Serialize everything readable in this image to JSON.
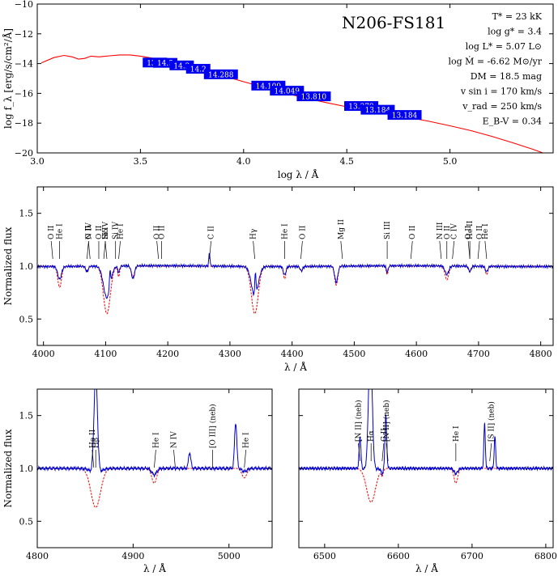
{
  "chart_data": [
    {
      "type": "line",
      "id": "sed",
      "title": "N206-FS181",
      "xlabel": "log λ / Å",
      "ylabel": "log f_λ [erg/s/cm²/Å]",
      "xlim": [
        3.0,
        5.5
      ],
      "ylim": [
        -20,
        -10
      ],
      "xticks": [
        3.0,
        3.5,
        4.0,
        4.5,
        5.0
      ],
      "xtick_labels": [
        "3.0",
        "3.5",
        "4.0",
        "4.5",
        "5.0"
      ],
      "yticks": [
        -20,
        -18,
        -16,
        -14,
        -12,
        -10
      ],
      "ytick_labels": [
        "−20",
        "−18",
        "−16",
        "−14",
        "−12",
        "−10"
      ],
      "grid": false,
      "series": [
        {
          "color": "#ff0000",
          "x": [
            3.02,
            3.08,
            3.13,
            3.17,
            3.2,
            3.23,
            3.26,
            3.3,
            3.35,
            3.4,
            3.45,
            3.5,
            3.55,
            3.6,
            3.65,
            3.7,
            3.8,
            3.9,
            4.0,
            4.1,
            4.2,
            4.3,
            4.4,
            4.5,
            4.6,
            4.7,
            4.8,
            4.9,
            5.0,
            5.1,
            5.2,
            5.3,
            5.4,
            5.45
          ],
          "y": [
            -13.95,
            -13.6,
            -13.45,
            -13.55,
            -13.7,
            -13.65,
            -13.5,
            -13.55,
            -13.48,
            -13.42,
            -13.42,
            -13.5,
            -13.62,
            -13.75,
            -13.9,
            -14.08,
            -14.42,
            -14.82,
            -15.22,
            -15.6,
            -15.98,
            -16.32,
            -16.62,
            -16.9,
            -17.14,
            -17.36,
            -17.62,
            -17.88,
            -18.18,
            -18.5,
            -18.88,
            -19.3,
            -19.75,
            -20.0
          ]
        }
      ],
      "photometry": [
        {
          "x": 3.57,
          "y": -13.93,
          "label": "13.1"
        },
        {
          "x": 3.62,
          "y": -13.95,
          "label": "14.5"
        },
        {
          "x": 3.7,
          "y": -14.12,
          "label": "14.2"
        },
        {
          "x": 3.78,
          "y": -14.35,
          "label": "14.2"
        },
        {
          "x": 3.89,
          "y": -14.72,
          "label": "14.288"
        },
        {
          "x": 4.12,
          "y": -15.48,
          "label": "14.109"
        },
        {
          "x": 4.21,
          "y": -15.82,
          "label": "14.049"
        },
        {
          "x": 4.34,
          "y": -16.2,
          "label": "13.810"
        },
        {
          "x": 4.57,
          "y": -16.85,
          "label": "13.379"
        },
        {
          "x": 4.65,
          "y": -17.1,
          "label": "13.184"
        },
        {
          "x": 4.78,
          "y": -17.45,
          "label": "13.184"
        }
      ],
      "photometry_color": "#0000ee",
      "parameters": [
        "T* = 23 kK",
        "log g* = 3.4",
        "log L* = 5.07 L⊙",
        "log Ṁ = -6.62 M⊙/yr",
        "DM = 18.5 mag",
        "v sin i = 170 km/s",
        "v_rad = 250 km/s",
        "E_B-V = 0.34"
      ]
    },
    {
      "type": "line",
      "id": "optical",
      "xlabel": "λ / Å",
      "ylabel": "Normalized flux",
      "xlim": [
        3990,
        4820
      ],
      "ylim": [
        0.25,
        1.75
      ],
      "xticks": [
        4000,
        4100,
        4200,
        4300,
        4400,
        4500,
        4600,
        4700,
        4800
      ],
      "xtick_labels": [
        "4000",
        "4100",
        "4200",
        "4300",
        "4400",
        "4500",
        "4600",
        "4700",
        "4800"
      ],
      "yticks": [
        0.5,
        1.0,
        1.5
      ],
      "ytick_labels": [
        "0.5",
        "1.0",
        "1.5"
      ],
      "continuum": 1.0,
      "observed_color": "#0000cc",
      "model_color": "#ff0000",
      "features": [
        {
          "c": 4026,
          "w": 3.0,
          "obs": -0.12,
          "mod": -0.2
        },
        {
          "c": 4070,
          "w": 2.0,
          "obs": -0.05,
          "mod": -0.06
        },
        {
          "c": 4102,
          "w": 5.5,
          "obs": -0.3,
          "mod": -0.45
        },
        {
          "c": 4107,
          "w": 1.0,
          "obs": 0.15,
          "mod": 0.0
        },
        {
          "c": 4121,
          "w": 1.5,
          "obs": -0.06,
          "mod": -0.1
        },
        {
          "c": 4144,
          "w": 2.5,
          "obs": -0.12,
          "mod": -0.1
        },
        {
          "c": 4267,
          "w": 1.0,
          "obs": 0.12,
          "mod": 0.0
        },
        {
          "c": 4340,
          "w": 5.5,
          "obs": -0.28,
          "mod": -0.45
        },
        {
          "c": 4341,
          "w": 1.0,
          "obs": 0.22,
          "mod": 0.0
        },
        {
          "c": 4388,
          "w": 2.0,
          "obs": -0.08,
          "mod": -0.12
        },
        {
          "c": 4415,
          "w": 2.0,
          "obs": -0.04,
          "mod": -0.05
        },
        {
          "c": 4471,
          "w": 2.5,
          "obs": -0.15,
          "mod": -0.18
        },
        {
          "c": 4553,
          "w": 1.5,
          "obs": -0.06,
          "mod": -0.08
        },
        {
          "c": 4649,
          "w": 3.0,
          "obs": -0.08,
          "mod": -0.13
        },
        {
          "c": 4686,
          "w": 2.0,
          "obs": -0.05,
          "mod": -0.05
        },
        {
          "c": 4713,
          "w": 2.0,
          "obs": -0.05,
          "mod": -0.08
        }
      ],
      "line_ids": [
        {
          "x": 4015,
          "text": "O II"
        },
        {
          "x": 4026,
          "text": "He I"
        },
        {
          "x": 4070,
          "text": "N IV"
        },
        {
          "x": 4075,
          "text": "O II"
        },
        {
          "x": 4089,
          "text": "O II"
        },
        {
          "x": 4097,
          "text": "Si IV"
        },
        {
          "x": 4102,
          "text": "Hδ"
        },
        {
          "x": 4116,
          "text": "Si IV"
        },
        {
          "x": 4121,
          "text": "He I"
        },
        {
          "x": 4185,
          "text": "O II"
        },
        {
          "x": 4190,
          "text": "O II"
        },
        {
          "x": 4267,
          "text": "C II"
        },
        {
          "x": 4340,
          "text": "Hγ"
        },
        {
          "x": 4388,
          "text": "He I"
        },
        {
          "x": 4414,
          "text": "O II"
        },
        {
          "x": 4481,
          "text": "Mg II"
        },
        {
          "x": 4553,
          "text": "Si III"
        },
        {
          "x": 4591,
          "text": "O II"
        },
        {
          "x": 4640,
          "text": "N III"
        },
        {
          "x": 4649,
          "text": "O II"
        },
        {
          "x": 4658,
          "text": "C IV"
        },
        {
          "x": 4686,
          "text": "O II"
        },
        {
          "x": 4686,
          "text": "He II"
        },
        {
          "x": 4699,
          "text": "O II"
        },
        {
          "x": 4713,
          "text": "He I"
        }
      ]
    },
    {
      "type": "line",
      "id": "hbeta",
      "xlabel": "λ / Å",
      "ylabel": "Normalized flux",
      "xlim": [
        4800,
        5045
      ],
      "ylim": [
        0.25,
        1.75
      ],
      "xticks": [
        4800,
        4900,
        5000
      ],
      "xtick_labels": [
        "4800",
        "4900",
        "5000"
      ],
      "yticks": [
        0.5,
        1.0,
        1.5
      ],
      "ytick_labels": [
        "0.5",
        "1.0",
        "1.5"
      ],
      "continuum": 1.0,
      "observed_color": "#0000cc",
      "model_color": "#ff0000",
      "features": [
        {
          "c": 4861,
          "w": 1.8,
          "obs": 0.95,
          "mod": 0.0
        },
        {
          "c": 4861,
          "w": 5.0,
          "obs": -0.05,
          "mod": -0.37
        },
        {
          "c": 4922,
          "w": 2.5,
          "obs": -0.06,
          "mod": -0.14
        },
        {
          "c": 4959,
          "w": 1.2,
          "obs": 0.15,
          "mod": 0.0
        },
        {
          "c": 5007,
          "w": 1.2,
          "obs": 0.43,
          "mod": 0.0
        },
        {
          "c": 5016,
          "w": 2.5,
          "obs": -0.03,
          "mod": -0.09
        }
      ],
      "line_ids": [
        {
          "x": 4859,
          "text": "He II"
        },
        {
          "x": 4861,
          "text": "Hβ"
        },
        {
          "x": 4922,
          "text": "He I"
        },
        {
          "x": 4944,
          "text": "N IV"
        },
        {
          "x": 4983,
          "text": "[O III] (neb)"
        },
        {
          "x": 5016,
          "text": "He I"
        }
      ]
    },
    {
      "type": "line",
      "id": "halpha",
      "xlabel": "λ / Å",
      "xlim": [
        6465,
        6810
      ],
      "ylim": [
        0.25,
        1.75
      ],
      "xticks": [
        6500,
        6600,
        6700,
        6800
      ],
      "xtick_labels": [
        "6500",
        "6600",
        "6700",
        "6800"
      ],
      "yticks": [
        0.5,
        1.0,
        1.5
      ],
      "continuum": 1.0,
      "observed_color": "#0000cc",
      "model_color": "#ff0000",
      "features": [
        {
          "c": 6548,
          "w": 1.2,
          "obs": 0.3,
          "mod": 0.0
        },
        {
          "c": 6562,
          "w": 2.5,
          "obs": 1.2,
          "mod": 0.0
        },
        {
          "c": 6563,
          "w": 6.0,
          "obs": -0.02,
          "mod": -0.32
        },
        {
          "c": 6578,
          "w": 1.5,
          "obs": -0.05,
          "mod": -0.06
        },
        {
          "c": 6583,
          "w": 1.2,
          "obs": 0.5,
          "mod": 0.0
        },
        {
          "c": 6678,
          "w": 2.5,
          "obs": -0.05,
          "mod": -0.14
        },
        {
          "c": 6717,
          "w": 1.0,
          "obs": 0.42,
          "mod": 0.0
        },
        {
          "c": 6731,
          "w": 1.0,
          "obs": 0.3,
          "mod": 0.0
        }
      ],
      "line_ids": [
        {
          "x": 6548,
          "text": "[N II] (neb)"
        },
        {
          "x": 6563,
          "text": "Hα"
        },
        {
          "x": 6578,
          "text": "C II"
        },
        {
          "x": 6586,
          "text": "[N II] (neb)"
        },
        {
          "x": 6678,
          "text": "He I"
        },
        {
          "x": 6724,
          "text": "[S II] (neb)"
        }
      ]
    }
  ]
}
